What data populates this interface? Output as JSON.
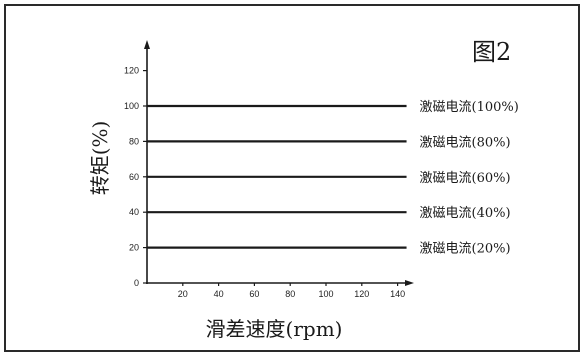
{
  "figure_label": "图2",
  "chart_data": {
    "type": "line",
    "title": "",
    "xlabel": "滑差速度(rpm)",
    "ylabel": "转矩(%)",
    "xlim": [
      0,
      150
    ],
    "ylim": [
      0,
      130
    ],
    "xticks": [
      20,
      40,
      60,
      80,
      100,
      120,
      140
    ],
    "yticks": [
      0,
      20,
      40,
      60,
      80,
      100,
      120
    ],
    "grid": false,
    "line_color": "#1a1a1a",
    "series": [
      {
        "name": "激磁电流(100%)",
        "x": [
          0,
          145
        ],
        "y": [
          100,
          100
        ]
      },
      {
        "name": "激磁电流(80%)",
        "x": [
          0,
          145
        ],
        "y": [
          80,
          80
        ]
      },
      {
        "name": "激磁电流(60%)",
        "x": [
          0,
          145
        ],
        "y": [
          60,
          60
        ]
      },
      {
        "name": "激磁电流(40%)",
        "x": [
          0,
          145
        ],
        "y": [
          40,
          40
        ]
      },
      {
        "name": "激磁电流(20%)",
        "x": [
          0,
          145
        ],
        "y": [
          20,
          20
        ]
      }
    ]
  }
}
